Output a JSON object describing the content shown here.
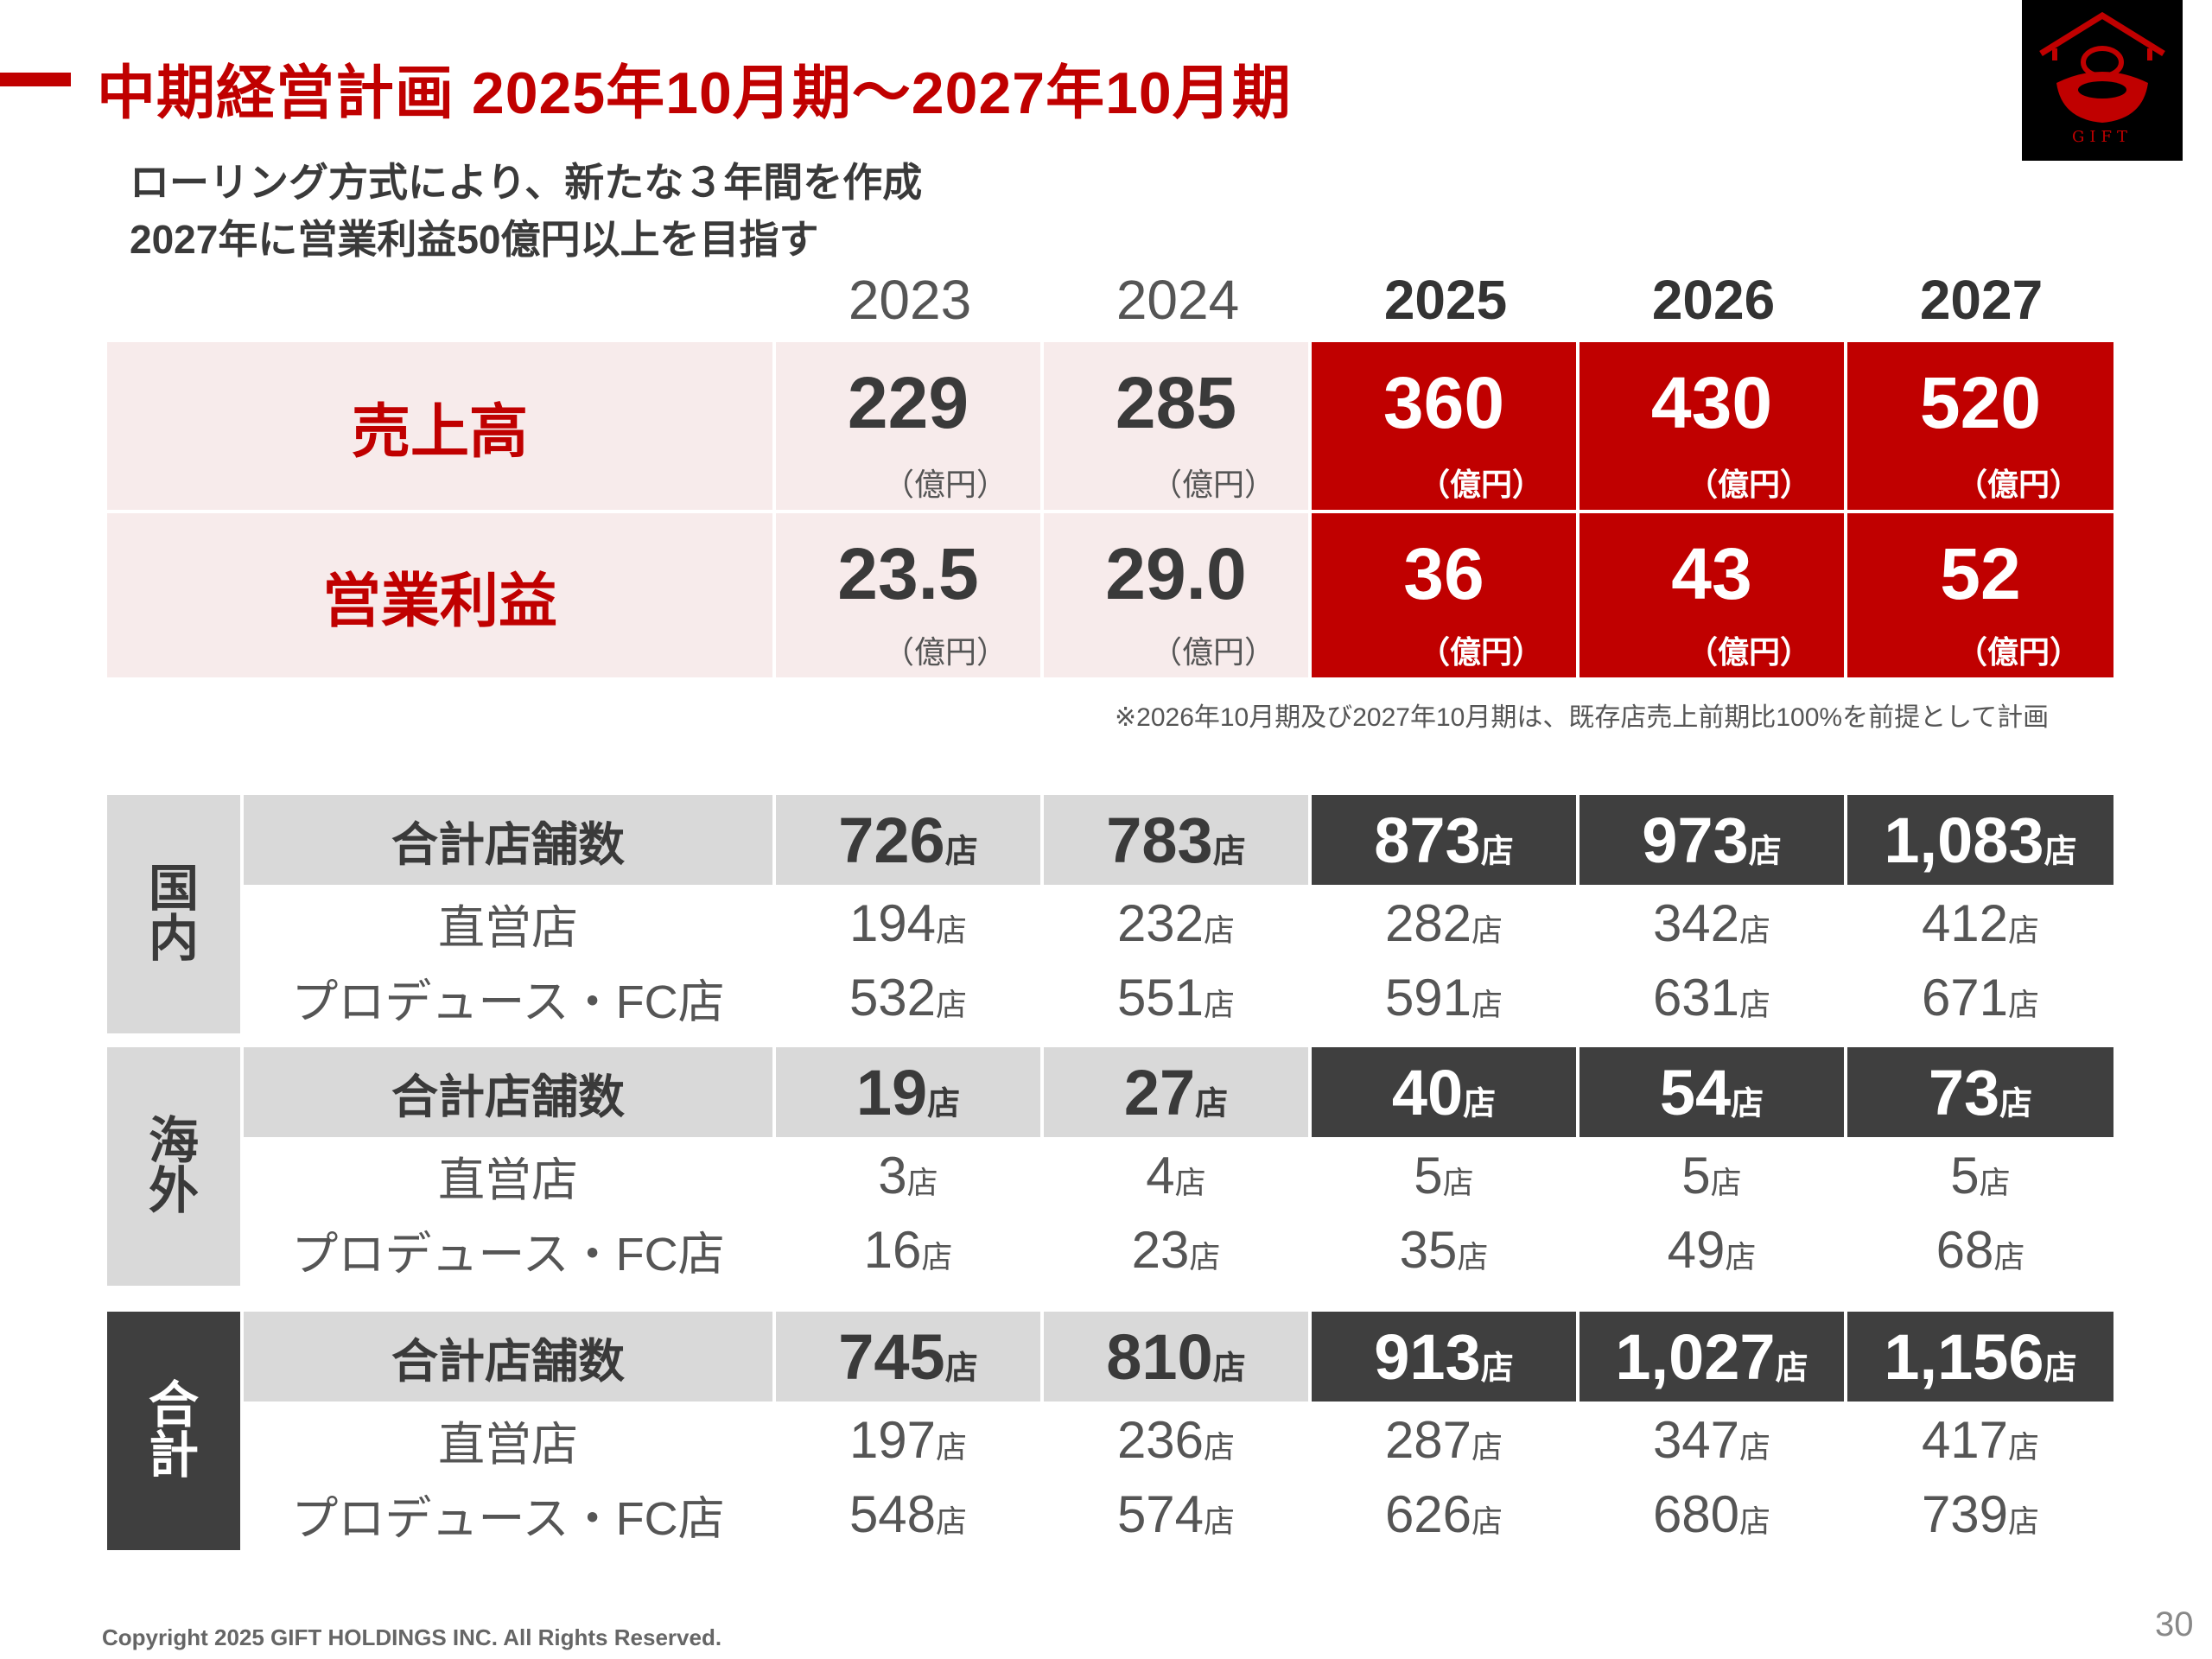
{
  "header": {
    "title": "中期経営計画 2025年10月期～2027年10月期",
    "logo_text": "GIFT",
    "subtitle_lines": [
      "ローリング方式により、新たな３年間を作成",
      "2027年に営業利益50億円以上を目指す"
    ]
  },
  "years": [
    "2023",
    "2024",
    "2025",
    "2026",
    "2027"
  ],
  "financials": [
    {
      "label": "売上高",
      "values": [
        "229",
        "285",
        "360",
        "430",
        "520"
      ],
      "unit": "（億円）"
    },
    {
      "label": "営業利益",
      "values": [
        "23.5",
        "29.0",
        "36",
        "43",
        "52"
      ],
      "unit": "（億円）"
    }
  ],
  "note": "※2026年10月期及び2027年10月期は、既存店売上前期比100%を前提として計画",
  "store_unit": "店",
  "sections": [
    {
      "label_chars": [
        "国",
        "内"
      ],
      "rows": [
        {
          "label": "合計店舗数",
          "values": [
            "726",
            "783",
            "873",
            "973",
            "1,083"
          ]
        },
        {
          "label": "直営店",
          "values": [
            "194",
            "232",
            "282",
            "342",
            "412"
          ]
        },
        {
          "label": "プロデュース・FC店",
          "values": [
            "532",
            "551",
            "591",
            "631",
            "671"
          ]
        }
      ]
    },
    {
      "label_chars": [
        "海",
        "外"
      ],
      "rows": [
        {
          "label": "合計店舗数",
          "values": [
            "19",
            "27",
            "40",
            "54",
            "73"
          ]
        },
        {
          "label": "直営店",
          "values": [
            "3",
            "4",
            "5",
            "5",
            "5"
          ]
        },
        {
          "label": "プロデュース・FC店",
          "values": [
            "16",
            "23",
            "35",
            "49",
            "68"
          ]
        }
      ]
    },
    {
      "label_chars": [
        "合",
        "計"
      ],
      "rows": [
        {
          "label": "合計店舗数",
          "values": [
            "745",
            "810",
            "913",
            "1,027",
            "1,156"
          ]
        },
        {
          "label": "直営店",
          "values": [
            "197",
            "236",
            "287",
            "347",
            "417"
          ]
        },
        {
          "label": "プロデュース・FC店",
          "values": [
            "548",
            "574",
            "626",
            "680",
            "739"
          ]
        }
      ]
    }
  ],
  "footer": {
    "copyright": "Copyright 2025 GIFT HOLDINGS INC. All Rights Reserved.",
    "page_number": "30"
  }
}
